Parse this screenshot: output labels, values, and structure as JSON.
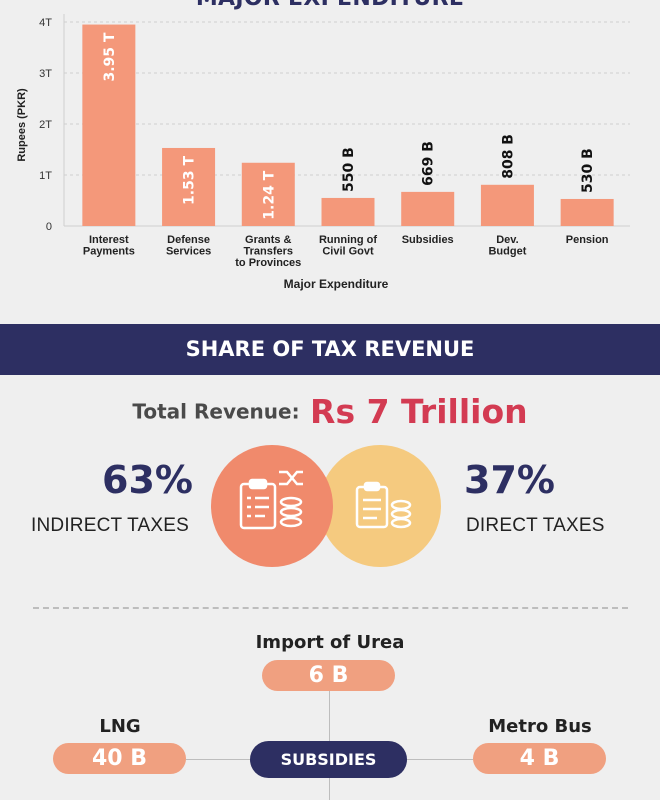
{
  "chart_data": {
    "type": "bar",
    "title": "MAJOR EXPENDITURE",
    "xlabel": "Major Expenditure",
    "ylabel": "Rupees (PKR)",
    "ylim": [
      0,
      4
    ],
    "yticks": [
      "0",
      "1T",
      "2T",
      "3T",
      "4T"
    ],
    "grid": true,
    "categories": [
      [
        "Interest",
        "Payments"
      ],
      [
        "Defense",
        "Services"
      ],
      [
        "Grants &",
        "Transfers",
        "to Provinces"
      ],
      [
        "Running of",
        "Civil Govt"
      ],
      [
        "Subsidies"
      ],
      [
        "Dev.",
        "Budget"
      ],
      [
        "Pension"
      ]
    ],
    "values": [
      3.95,
      1.53,
      1.24,
      0.55,
      0.669,
      0.808,
      0.53
    ],
    "value_unit": "trillion PKR",
    "data_labels": [
      "3.95 T",
      "1.53 T",
      "1.24 T",
      "550 B",
      "669 B",
      "808 B",
      "530 B"
    ],
    "bar_color": "#f4987a"
  },
  "tax": {
    "banner": "SHARE OF TAX REVENUE",
    "total_label": "Total Revenue:",
    "total_value": "Rs 7 Trillion",
    "indirect_pct": "63%",
    "indirect_label": "INDIRECT TAXES",
    "direct_pct": "37%",
    "direct_label": "DIRECT TAXES",
    "indirect_color": "#f08a6c",
    "direct_color": "#f6c97a"
  },
  "subsidies": {
    "center_label": "SUBSIDIES",
    "urea_label": "Import of Urea",
    "urea_value": "6 B",
    "lng_label": "LNG",
    "lng_value": "40 B",
    "metro_label": "Metro Bus",
    "metro_value": "4 B"
  }
}
